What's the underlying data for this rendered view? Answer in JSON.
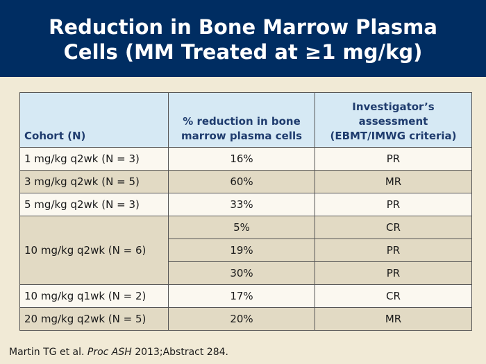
{
  "slide": {
    "title_line1": "Reduction in Bone Marrow Plasma",
    "title_line2": "Cells (MM Treated at ≥1 mg/kg)"
  },
  "table": {
    "headers": {
      "cohort": "Cohort (N)",
      "reduction_line1": "% reduction in bone",
      "reduction_line2": "marrow plasma cells",
      "assessment_line1": "Investigator’s",
      "assessment_line2": "assessment",
      "assessment_line3": "(EBMT/IMWG criteria)"
    },
    "rows": [
      {
        "cohort": "1 mg/kg q2wk (N = 3)",
        "reduction": "16%",
        "assessment": "PR"
      },
      {
        "cohort": "3 mg/kg q2wk (N = 5)",
        "reduction": "60%",
        "assessment": "MR"
      },
      {
        "cohort": "5 mg/kg q2wk (N = 3)",
        "reduction": "33%",
        "assessment": "PR"
      },
      {
        "cohort": "10 mg/kg q2wk (N = 6)",
        "reduction": "5%",
        "assessment": "CR"
      },
      {
        "cohort": "",
        "reduction": "19%",
        "assessment": "PR"
      },
      {
        "cohort": "",
        "reduction": "30%",
        "assessment": "PR"
      },
      {
        "cohort": "10 mg/kg q1wk (N = 2)",
        "reduction": "17%",
        "assessment": "CR"
      },
      {
        "cohort": "20 mg/kg q2wk (N = 5)",
        "reduction": "20%",
        "assessment": "MR"
      }
    ]
  },
  "footer": {
    "citation_prefix": "Martin TG et al. ",
    "citation_journal": "Proc ASH",
    "citation_suffix": " 2013;Abstract 284."
  },
  "colors": {
    "title_bar": "#002d62",
    "background": "#f1ead6",
    "header_fill": "#d6e9f4",
    "row_light": "#fbf8f0",
    "row_dark": "#e2dac4"
  }
}
